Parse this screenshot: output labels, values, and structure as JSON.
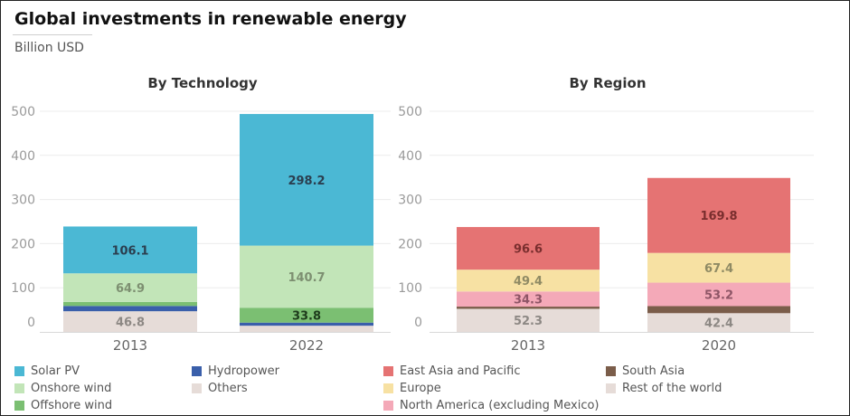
{
  "header": {
    "title": "Global investments in renewable energy",
    "subtitle": "Billion USD"
  },
  "chart_data": [
    {
      "type": "bar",
      "stacked": true,
      "title": "By Technology",
      "categories": [
        "2013",
        "2022"
      ],
      "ylim": [
        0,
        500
      ],
      "yticks": [
        0,
        100,
        200,
        300,
        400,
        500
      ],
      "grid": true,
      "series": [
        {
          "name": "Others",
          "color": "#e6dcd8",
          "values": [
            46.8,
            14
          ],
          "labels": [
            "46.8",
            ""
          ]
        },
        {
          "name": "Hydropower",
          "color": "#3a5faa",
          "values": [
            12,
            7
          ],
          "labels": [
            "",
            ""
          ]
        },
        {
          "name": "Offshore wind",
          "color": "#7bbf72",
          "values": [
            9,
            33.8
          ],
          "labels": [
            "",
            "33.8"
          ]
        },
        {
          "name": "Onshore wind",
          "color": "#c2e5b8",
          "values": [
            64.9,
            140.7
          ],
          "labels": [
            "64.9",
            "140.7"
          ]
        },
        {
          "name": "Solar PV",
          "color": "#4bb8d4",
          "values": [
            106.1,
            298.2
          ],
          "labels": [
            "106.1",
            "298.2"
          ]
        }
      ]
    },
    {
      "type": "bar",
      "stacked": true,
      "title": "By Region",
      "categories": [
        "2013",
        "2020"
      ],
      "ylim": [
        0,
        500
      ],
      "yticks": [
        0,
        100,
        200,
        300,
        400,
        500
      ],
      "grid": true,
      "series": [
        {
          "name": "Rest of the world",
          "color": "#e6dcd8",
          "values": [
            52.3,
            42.4
          ],
          "labels": [
            "52.3",
            "42.4"
          ]
        },
        {
          "name": "South Asia",
          "color": "#7b5d4a",
          "values": [
            5,
            16
          ],
          "labels": [
            "",
            ""
          ]
        },
        {
          "name": "North America (excluding Mexico)",
          "color": "#f4a9b8",
          "values": [
            34.3,
            53.2
          ],
          "labels": [
            "34.3",
            "53.2"
          ]
        },
        {
          "name": "Europe",
          "color": "#f7e1a3",
          "values": [
            49.4,
            67.4
          ],
          "labels": [
            "49.4",
            "67.4"
          ]
        },
        {
          "name": "East Asia and Pacific",
          "color": "#e57373",
          "values": [
            96.6,
            169.8
          ],
          "labels": [
            "96.6",
            "169.8"
          ]
        }
      ]
    }
  ],
  "legend": [
    {
      "label": "Solar PV",
      "color": "#4bb8d4"
    },
    {
      "label": "Onshore wind",
      "color": "#c2e5b8"
    },
    {
      "label": "Offshore wind",
      "color": "#7bbf72"
    },
    {
      "label": "Hydropower",
      "color": "#3a5faa"
    },
    {
      "label": "Others",
      "color": "#e6dcd8"
    },
    {
      "label": "East Asia and Pacific",
      "color": "#e57373"
    },
    {
      "label": "Europe",
      "color": "#f7e1a3"
    },
    {
      "label": "North America (excluding Mexico)",
      "color": "#f4a9b8"
    },
    {
      "label": "South Asia",
      "color": "#7b5d4a"
    },
    {
      "label": "Rest of the world",
      "color": "#e6dcd8"
    }
  ]
}
